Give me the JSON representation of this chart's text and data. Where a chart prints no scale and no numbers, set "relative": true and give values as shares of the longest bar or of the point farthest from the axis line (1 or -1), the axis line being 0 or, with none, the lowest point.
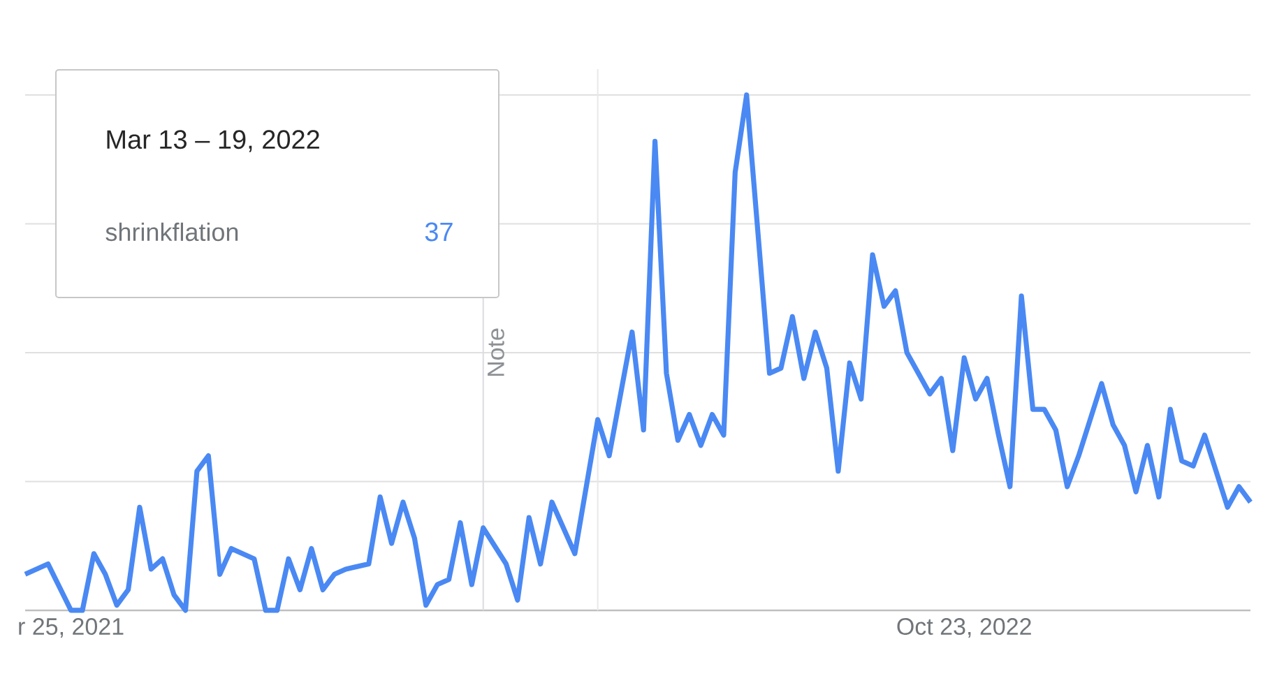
{
  "chart_data": {
    "type": "line",
    "relative": true,
    "grid": "y",
    "x": [
      "2021-03-28",
      "2021-04-11",
      "2021-04-25",
      "2021-05-02",
      "2021-05-09",
      "2021-05-16",
      "2021-05-23",
      "2021-05-30",
      "2021-06-06",
      "2021-06-13",
      "2021-06-20",
      "2021-06-27",
      "2021-07-04",
      "2021-07-11",
      "2021-07-18",
      "2021-07-25",
      "2021-08-01",
      "2021-08-15",
      "2021-08-22",
      "2021-08-29",
      "2021-09-05",
      "2021-09-12",
      "2021-09-19",
      "2021-09-26",
      "2021-10-03",
      "2021-10-10",
      "2021-10-24",
      "2021-10-31",
      "2021-11-07",
      "2021-11-14",
      "2021-11-21",
      "2021-11-28",
      "2021-12-05",
      "2021-12-12",
      "2021-12-19",
      "2021-12-26",
      "2022-01-02",
      "2022-01-16",
      "2022-01-23",
      "2022-01-30",
      "2022-02-06",
      "2022-02-13",
      "2022-02-20",
      "2022-02-27",
      "2022-03-13",
      "2022-03-20",
      "2022-03-27",
      "2022-04-03",
      "2022-04-10",
      "2022-04-17",
      "2022-04-24",
      "2022-05-01",
      "2022-05-08",
      "2022-05-15",
      "2022-05-22",
      "2022-05-29",
      "2022-06-05",
      "2022-06-12",
      "2022-06-26",
      "2022-07-03",
      "2022-07-10",
      "2022-07-17",
      "2022-07-24",
      "2022-07-31",
      "2022-08-07",
      "2022-08-14",
      "2022-08-21",
      "2022-08-28",
      "2022-09-04",
      "2022-09-11",
      "2022-09-18",
      "2022-10-02",
      "2022-10-09",
      "2022-10-16",
      "2022-10-23",
      "2022-10-30",
      "2022-11-06",
      "2022-11-13",
      "2022-11-20",
      "2022-11-27",
      "2022-12-04",
      "2022-12-11",
      "2022-12-18",
      "2022-12-25",
      "2023-01-01",
      "2023-01-15",
      "2023-01-22",
      "2023-01-29",
      "2023-02-05",
      "2023-02-12",
      "2023-02-19",
      "2023-02-26",
      "2023-03-05",
      "2023-03-12",
      "2023-03-19",
      "2023-04-02",
      "2023-04-09",
      "2023-04-16"
    ],
    "series": [
      {
        "color": "#4a89f3",
        "values": [
          0.07,
          0.09,
          0,
          0,
          0.11,
          0.07,
          0.01,
          0.04,
          0.2,
          0.08,
          0.1,
          0.03,
          0,
          0.27,
          0.3,
          0.07,
          0.12,
          0.1,
          0,
          0,
          0.1,
          0.04,
          0.12,
          0.04,
          0.07,
          0.08,
          0.09,
          0.22,
          0.13,
          0.21,
          0.14,
          0.01,
          0.05,
          0.06,
          0.17,
          0.05,
          0.16,
          0.09,
          0.02,
          0.18,
          0.09,
          0.21,
          0.16,
          0.11,
          0.37,
          0.3,
          0.42,
          0.54,
          0.35,
          0.91,
          0.46,
          0.33,
          0.38,
          0.32,
          0.38,
          0.34,
          0.85,
          1,
          0.46,
          0.47,
          0.57,
          0.45,
          0.54,
          0.47,
          0.27,
          0.48,
          0.41,
          0.69,
          0.59,
          0.62,
          0.5,
          0.42,
          0.45,
          0.31,
          0.49,
          0.41,
          0.45,
          0.34,
          0.24,
          0.61,
          0.39,
          0.39,
          0.35,
          0.24,
          0.3,
          0.44,
          0.36,
          0.32,
          0.23,
          0.32,
          0.22,
          0.39,
          0.29,
          0.28,
          0.34,
          0.2,
          0.24,
          0.21
        ]
      }
    ],
    "xlim": [
      "2021-03-28",
      "2023-04-16"
    ],
    "xticks": [
      {
        "value": "2021-04-25",
        "label": "r 25, 2021"
      },
      {
        "value": "2022-10-23",
        "label": "Oct 23, 2022"
      }
    ],
    "ref_lines": [
      {
        "axis": "x",
        "value": "2022-01-02",
        "label": "Note",
        "color": "#dadce0"
      },
      {
        "axis": "x",
        "value": "2022-03-13",
        "color": "#e8e8e8"
      }
    ],
    "annotations": [
      "Mar 13 – 19, 2022",
      "shrinkflation",
      "37"
    ]
  }
}
